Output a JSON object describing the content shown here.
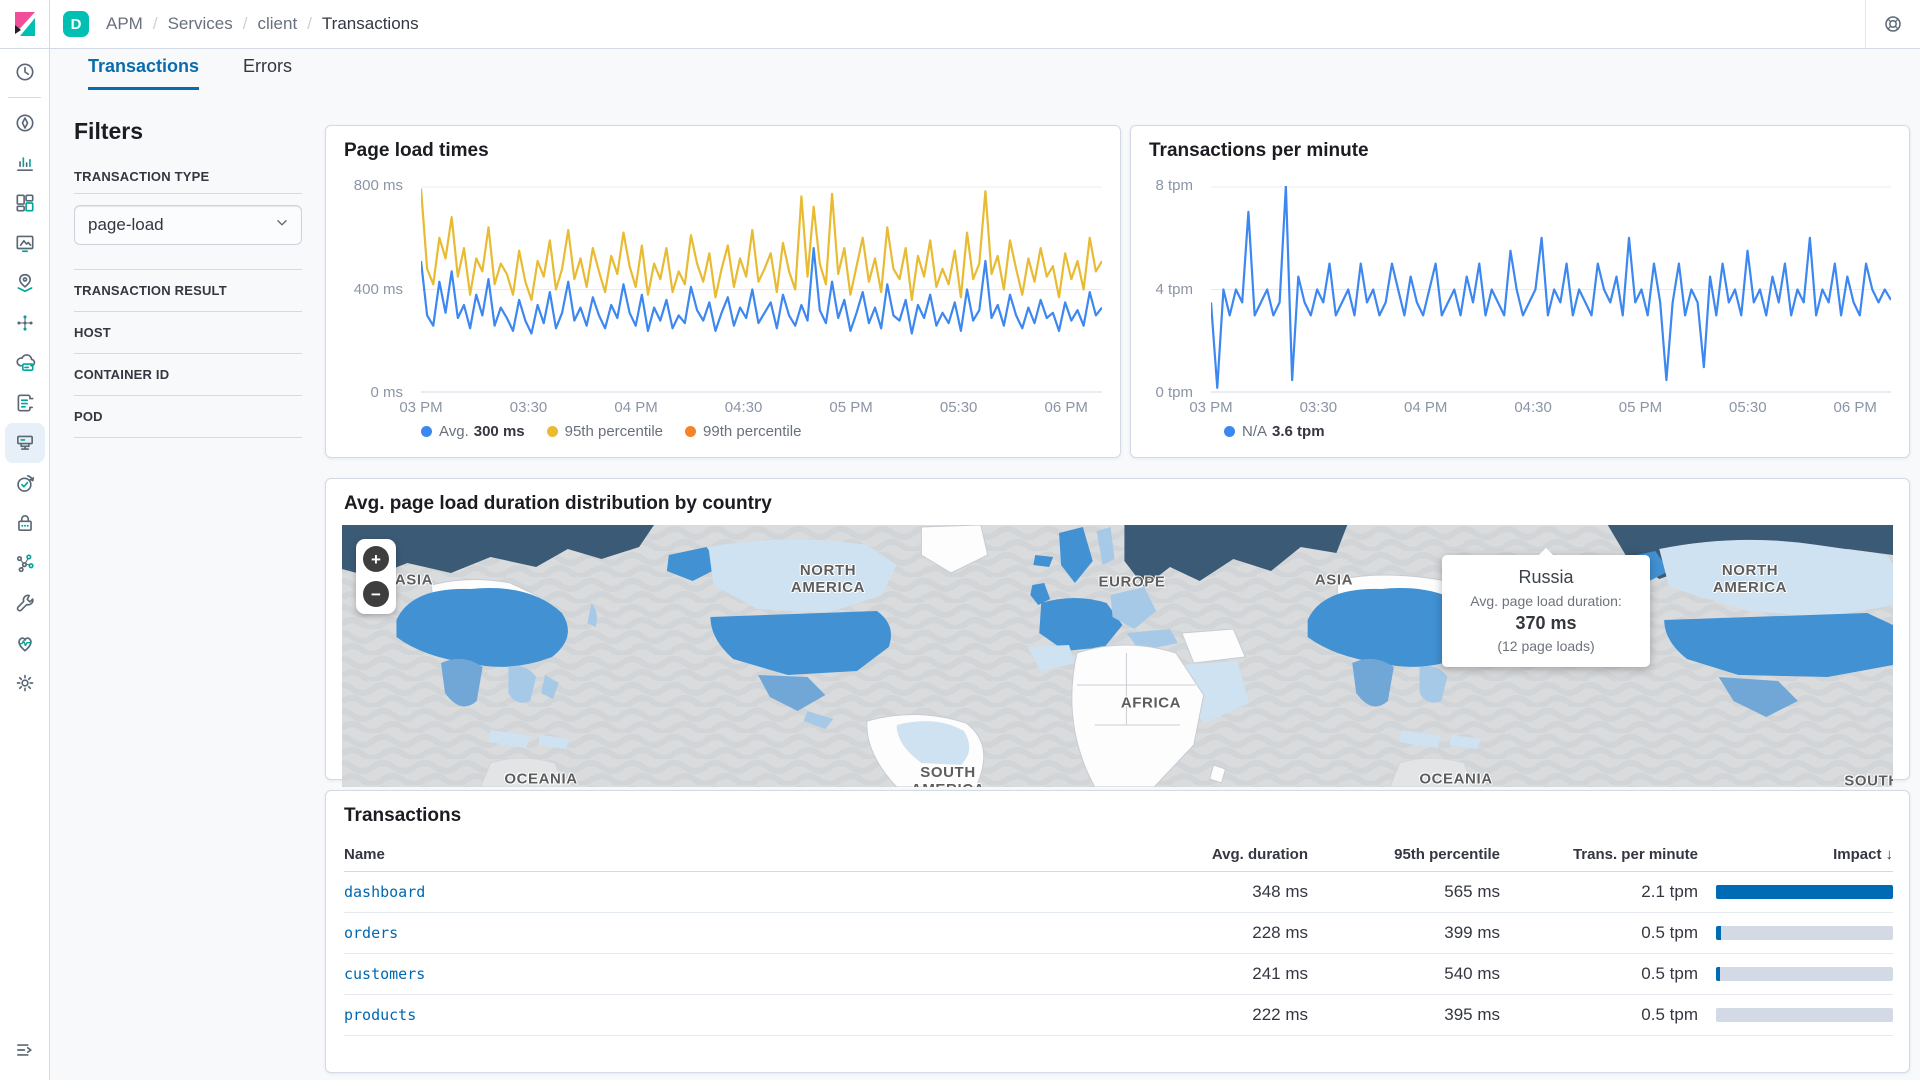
{
  "header": {
    "space_badge": "D",
    "breadcrumb": [
      {
        "label": "APM"
      },
      {
        "label": "Services"
      },
      {
        "label": "client"
      },
      {
        "label": "Transactions"
      }
    ]
  },
  "nav": {
    "items": [
      {
        "id": "recently-viewed",
        "selected": false
      },
      {
        "id": "discover",
        "selected": false
      },
      {
        "id": "visualize",
        "selected": false
      },
      {
        "id": "dashboard",
        "selected": false
      },
      {
        "id": "canvas",
        "selected": false
      },
      {
        "id": "maps",
        "selected": false
      },
      {
        "id": "machine-learning",
        "selected": false
      },
      {
        "id": "fleet",
        "selected": false
      },
      {
        "id": "logs",
        "selected": false
      },
      {
        "id": "apm",
        "selected": true
      },
      {
        "id": "uptime",
        "selected": false
      },
      {
        "id": "siem",
        "selected": false
      },
      {
        "id": "graph",
        "selected": false
      },
      {
        "id": "dev-tools",
        "selected": false
      },
      {
        "id": "metrics",
        "selected": false
      },
      {
        "id": "management",
        "selected": false
      }
    ]
  },
  "tabs": [
    {
      "label": "Transactions",
      "active": true
    },
    {
      "label": "Errors",
      "active": false
    }
  ],
  "filters": {
    "title": "Filters",
    "transaction_type": {
      "label": "TRANSACTION TYPE",
      "value": "page-load"
    },
    "sections": [
      {
        "label": "TRANSACTION RESULT"
      },
      {
        "label": "HOST"
      },
      {
        "label": "CONTAINER ID"
      },
      {
        "label": "POD"
      }
    ]
  },
  "chart_data": [
    {
      "id": "page-load-times",
      "type": "line",
      "title": "Page load times",
      "ylim": [
        0,
        800
      ],
      "y_tick_labels": [
        "800 ms",
        "400 ms",
        "0 ms"
      ],
      "x_tick_labels": [
        "03 PM",
        "03:30",
        "04 PM",
        "04:30",
        "05 PM",
        "05:30",
        "06 PM"
      ],
      "grid": true,
      "legend_position": "bottom",
      "legend": [
        {
          "label": "Avg.",
          "value": "300 ms",
          "color": "#3c87f0"
        },
        {
          "label": "95th percentile",
          "value": "",
          "color": "#e8bb33"
        },
        {
          "label": "99th percentile",
          "value": "",
          "color": "#f5832a"
        }
      ],
      "series": [
        {
          "name": "Avg.",
          "color": "#3c87f0",
          "values": [
            510,
            300,
            260,
            430,
            310,
            470,
            290,
            340,
            250,
            380,
            300,
            440,
            260,
            330,
            290,
            240,
            360,
            280,
            230,
            340,
            270,
            390,
            250,
            310,
            430,
            280,
            330,
            260,
            370,
            300,
            250,
            340,
            290,
            420,
            310,
            260,
            380,
            240,
            330,
            280,
            360,
            250,
            300,
            270,
            410,
            320,
            280,
            350,
            240,
            310,
            370,
            260,
            330,
            290,
            400,
            270,
            310,
            350,
            250,
            380,
            300,
            260,
            340,
            280,
            560,
            320,
            270,
            430,
            290,
            360,
            240,
            310,
            390,
            270,
            330,
            250,
            420,
            300,
            280,
            360,
            230,
            340,
            290,
            380,
            260,
            310,
            270,
            350,
            240,
            400,
            280,
            320,
            510,
            290,
            340,
            260,
            380,
            300,
            250,
            330,
            270,
            360,
            290,
            310,
            240,
            350,
            280,
            320,
            260,
            390,
            300,
            330
          ]
        },
        {
          "name": "95th percentile",
          "color": "#e8bb33",
          "values": [
            790,
            480,
            420,
            600,
            520,
            680,
            450,
            560,
            380,
            520,
            470,
            640,
            420,
            500,
            460,
            380,
            550,
            430,
            360,
            510,
            450,
            590,
            400,
            480,
            630,
            440,
            520,
            410,
            560,
            470,
            390,
            530,
            460,
            620,
            490,
            410,
            570,
            380,
            500,
            440,
            560,
            390,
            470,
            420,
            610,
            500,
            430,
            540,
            370,
            480,
            570,
            410,
            520,
            450,
            630,
            430,
            480,
            540,
            390,
            580,
            470,
            400,
            760,
            450,
            720,
            500,
            420,
            770,
            460,
            560,
            380,
            490,
            600,
            430,
            520,
            390,
            640,
            480,
            440,
            560,
            360,
            530,
            450,
            590,
            410,
            480,
            420,
            550,
            370,
            620,
            440,
            500,
            780,
            460,
            530,
            400,
            590,
            480,
            380,
            520,
            430,
            560,
            450,
            490,
            370,
            540,
            440,
            510,
            400,
            600,
            470,
            510
          ]
        }
      ]
    },
    {
      "id": "transactions-per-minute",
      "type": "line",
      "title": "Transactions per minute",
      "ylim": [
        0,
        8
      ],
      "y_tick_labels": [
        "8 tpm",
        "4 tpm",
        "0 tpm"
      ],
      "x_tick_labels": [
        "03 PM",
        "03:30",
        "04 PM",
        "04:30",
        "05 PM",
        "05:30",
        "06 PM"
      ],
      "grid": true,
      "legend_position": "bottom",
      "legend": [
        {
          "label": "N/A",
          "value": "3.6 tpm",
          "color": "#3c87f0"
        }
      ],
      "series": [
        {
          "name": "N/A",
          "color": "#3c87f0",
          "values": [
            3.5,
            0.2,
            4,
            3,
            4,
            3.5,
            7,
            3,
            3.5,
            4,
            3,
            3.5,
            8,
            0.5,
            4.5,
            3.5,
            3,
            4,
            3.5,
            5,
            3,
            3.5,
            4,
            3,
            5,
            3.5,
            4,
            3,
            3.5,
            5,
            4,
            3,
            4.5,
            3.5,
            3,
            4,
            5,
            3,
            3.5,
            4,
            3,
            4.5,
            3.5,
            5,
            3,
            4,
            3.5,
            3,
            5.5,
            4,
            3,
            3.5,
            4,
            6,
            3,
            4,
            3.5,
            5,
            3,
            4,
            3.5,
            3,
            5,
            4,
            3.5,
            4.5,
            3,
            6,
            3.5,
            4,
            3,
            5,
            3.5,
            0.5,
            3.5,
            5,
            3,
            4,
            3.5,
            1,
            4.5,
            3,
            5,
            3.5,
            4,
            3,
            5.5,
            3.5,
            4,
            3,
            4.5,
            3.5,
            5,
            3,
            4,
            3.5,
            6,
            3,
            4,
            3.5,
            5,
            3,
            4.5,
            3.5,
            3,
            5,
            4,
            3.5,
            4,
            3.6
          ]
        }
      ]
    }
  ],
  "map": {
    "title": "Avg. page load duration distribution by country",
    "labels": [
      {
        "text": "ASIA"
      },
      {
        "text": "NORTH AMERICA"
      },
      {
        "text": "EUROPE"
      },
      {
        "text": "ASIA"
      },
      {
        "text": "AFRICA"
      },
      {
        "text": "NORTH AMERICA"
      },
      {
        "text": "OCEANIA"
      },
      {
        "text": "SOUTH AMERICA"
      },
      {
        "text": "OCEANIA"
      },
      {
        "text": "SOUTH"
      }
    ],
    "controls": {
      "zoom_in": "+",
      "zoom_out": "−"
    },
    "tooltip": {
      "country": "Russia",
      "label": "Avg. page load duration:",
      "value": "370 ms",
      "note": "(12 page loads)"
    }
  },
  "table": {
    "title": "Transactions",
    "columns": [
      {
        "label": "Name"
      },
      {
        "label": "Avg. duration"
      },
      {
        "label": "95th percentile"
      },
      {
        "label": "Trans. per minute"
      },
      {
        "label": "Impact"
      }
    ],
    "sort_icon": "↓",
    "rows": [
      {
        "name": "dashboard",
        "avg_duration": "348 ms",
        "p95": "565 ms",
        "tpm": "2.1 tpm",
        "impact_pct": 100
      },
      {
        "name": "orders",
        "avg_duration": "228 ms",
        "p95": "399 ms",
        "tpm": "0.5 tpm",
        "impact_pct": 3
      },
      {
        "name": "customers",
        "avg_duration": "241 ms",
        "p95": "540 ms",
        "tpm": "0.5 tpm",
        "impact_pct": 2
      },
      {
        "name": "products",
        "avg_duration": "222 ms",
        "p95": "395 ms",
        "tpm": "0.5 tpm",
        "impact_pct": 0
      }
    ]
  },
  "colors": {
    "accent_blue": "#006BB4",
    "chart_blue": "#3c87f0",
    "chart_yellow": "#e8bb33",
    "chart_orange": "#f5832a",
    "space_badge_teal": "#00bfb3",
    "impact_bar": "#006BB4",
    "impact_track": "#d3dae6",
    "map_no_data": "#fdfdfe",
    "map_max": "#3b5a75"
  }
}
